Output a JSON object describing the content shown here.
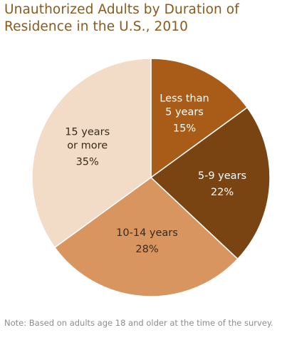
{
  "chart_data": {
    "type": "pie",
    "title": "Unauthorized Adults by Duration of Residence in the U.S., 2010",
    "note": "Note: Based on adults age 18 and older at the time of the survey.",
    "slices": [
      {
        "label_lines": [
          "Less than",
          "5 years"
        ],
        "value_label": "15%",
        "value": 15,
        "color": "#a85c17",
        "text_color": "#ffffff"
      },
      {
        "label_lines": [
          "5-9 years"
        ],
        "value_label": "22%",
        "value": 22,
        "color": "#7a4312",
        "text_color": "#ffffff"
      },
      {
        "label_lines": [
          "10-14 years"
        ],
        "value_label": "28%",
        "value": 28,
        "color": "#d89560",
        "text_color": "#3a2a1a"
      },
      {
        "label_lines": [
          "15 years",
          "or more"
        ],
        "value_label": "35%",
        "value": 35,
        "color": "#f2dcc8",
        "text_color": "#3a2a1a"
      }
    ],
    "start": "top",
    "direction": "clockwise"
  }
}
